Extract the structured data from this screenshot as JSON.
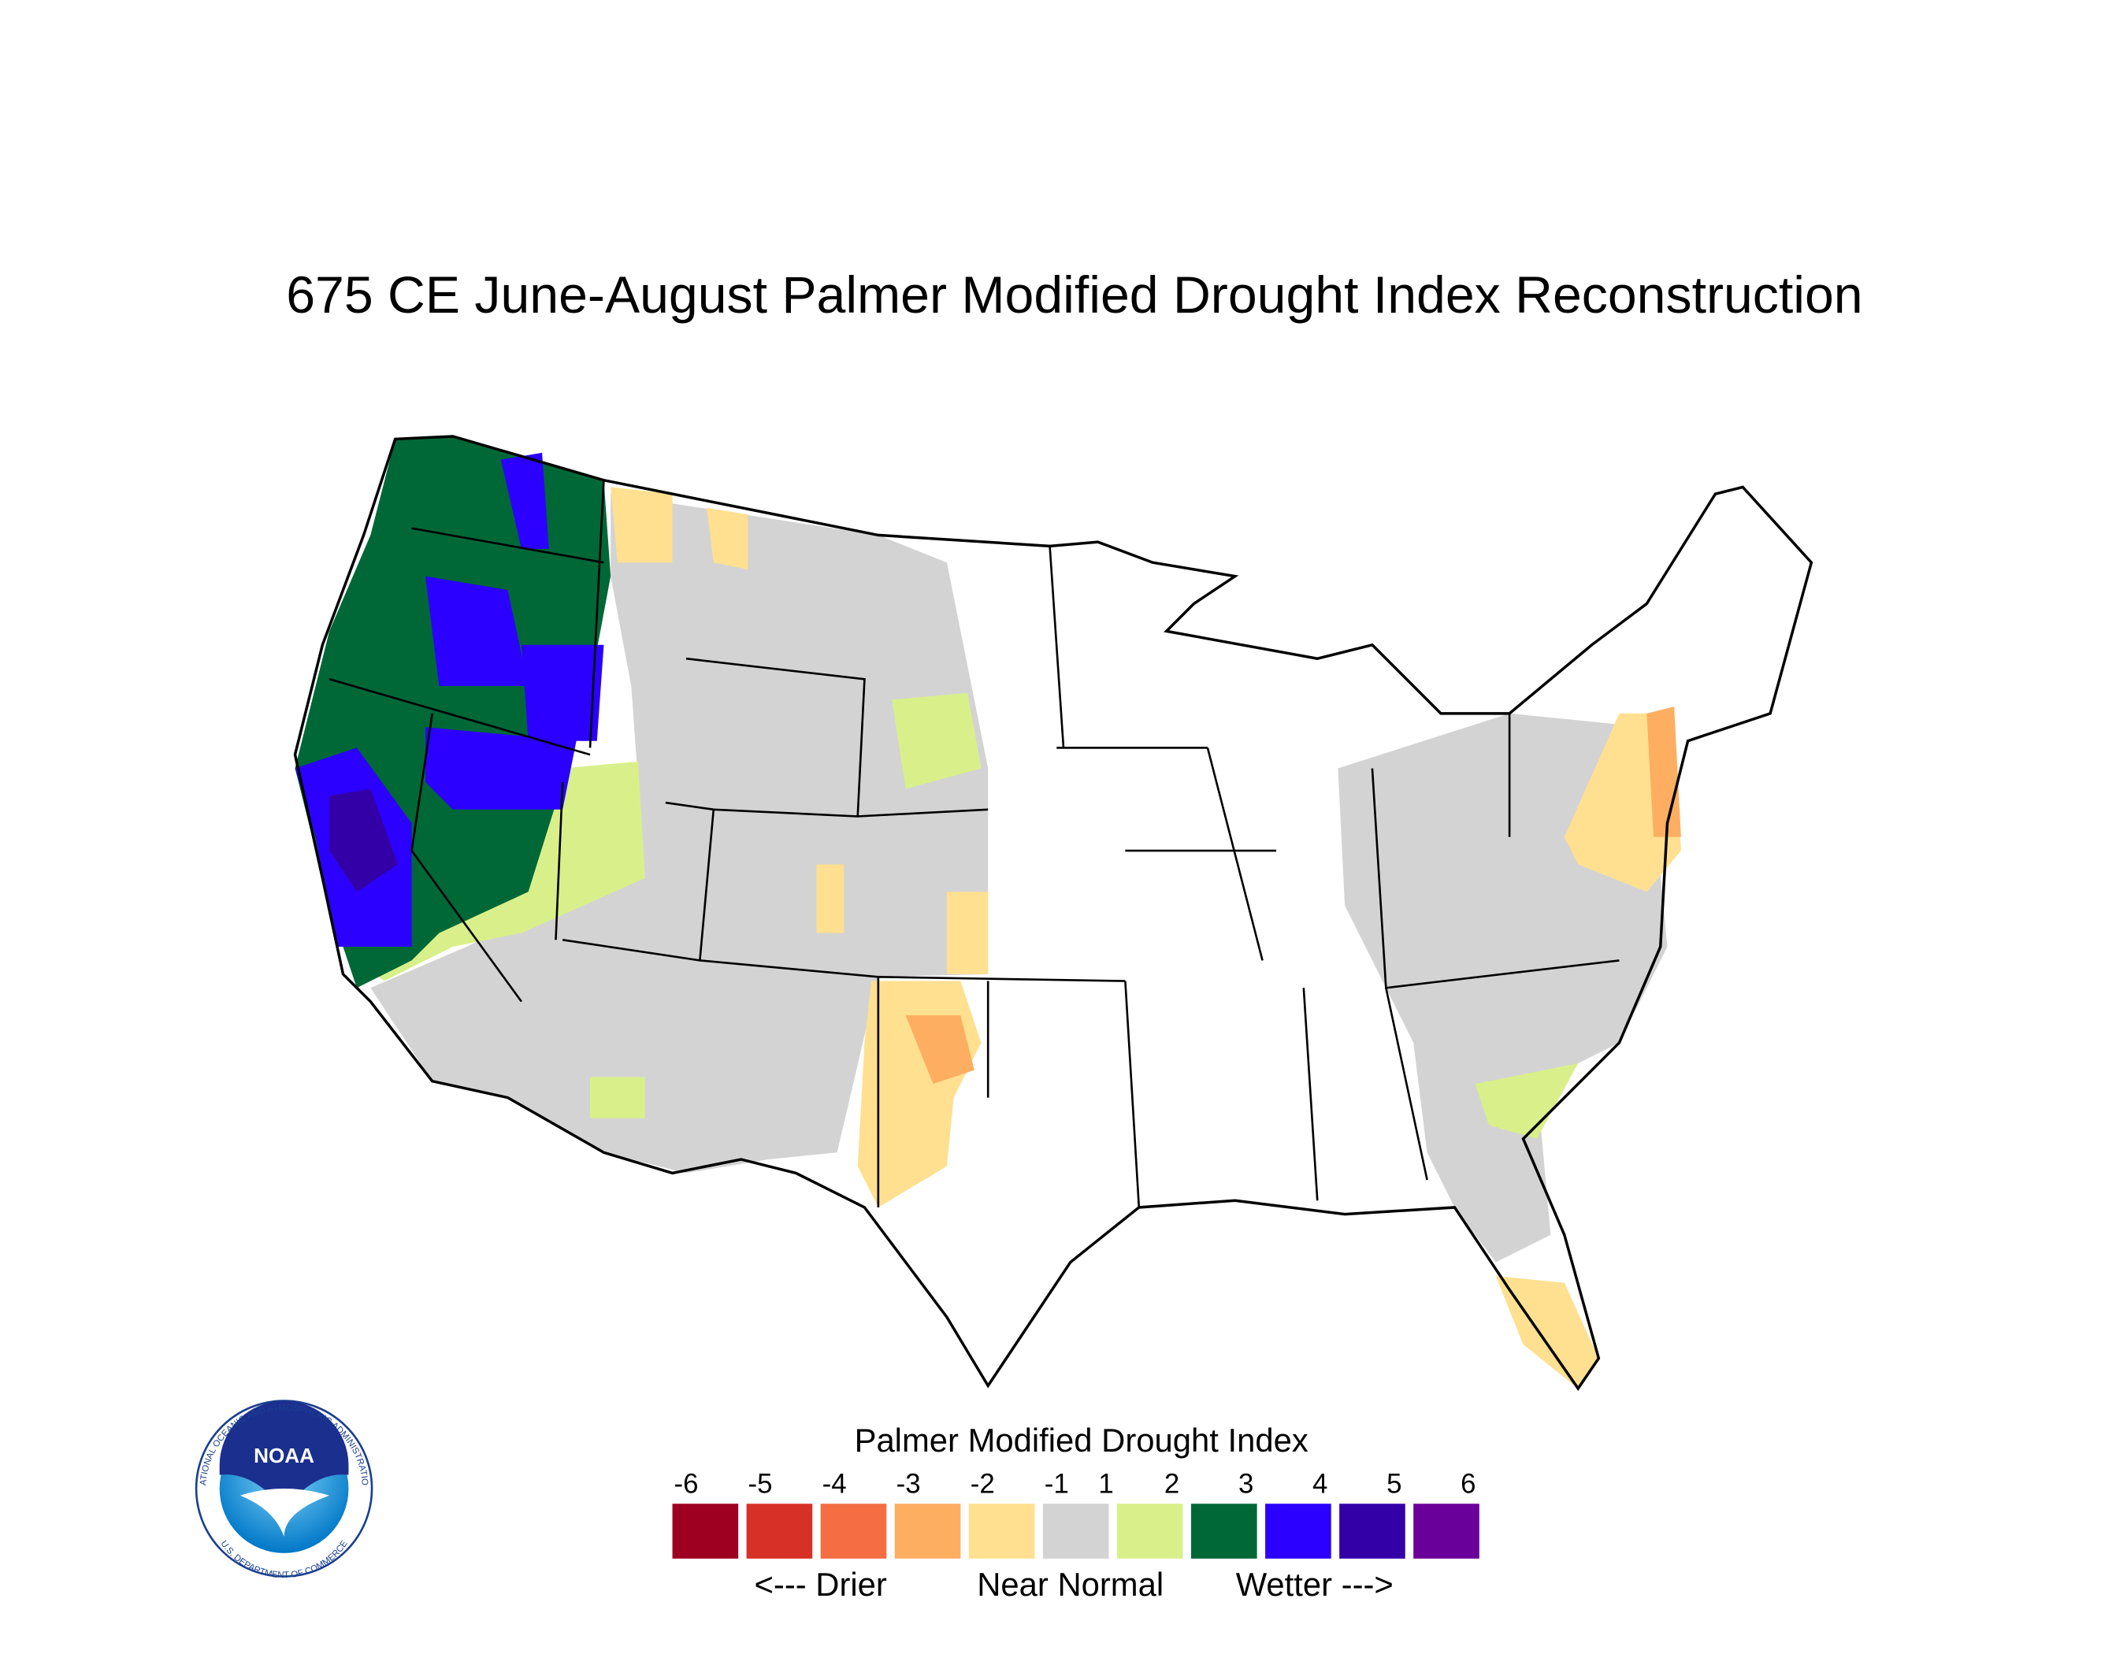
{
  "header": {
    "title": "675 CE  June-August  Palmer Modified Drought Index Reconstruction"
  },
  "legend": {
    "title": "Palmer Modified Drought Index",
    "labels": [
      -6,
      -5,
      -4,
      -3,
      -2,
      -1,
      1,
      2,
      3,
      4,
      5,
      6
    ],
    "colors": [
      "#9e0022",
      "#d73027",
      "#f46d43",
      "#fdae61",
      "#fee090",
      "#d3d3d3",
      "#d9f08a",
      "#006837",
      "#2b00ff",
      "#3300a8",
      "#6a0099"
    ],
    "annotations": [
      "<--- Drier",
      "Near Normal",
      "Wetter --->"
    ]
  },
  "logo": {
    "text": "NOAA",
    "ring_top": "NATIONAL OCEANIC AND ATMOSPHERIC ADMINISTRATION",
    "ring_bottom": "U.S. DEPARTMENT OF COMMERCE"
  }
}
